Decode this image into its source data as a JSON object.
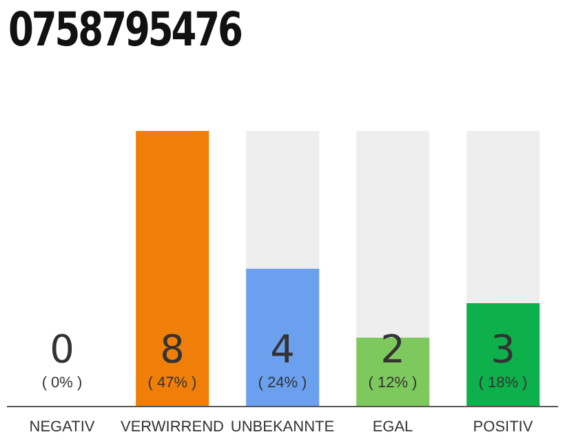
{
  "chart_data": {
    "type": "bar",
    "title": "0758795476",
    "categories": [
      "NEGATIV",
      "VERWIRREND",
      "UNBEKANNTE",
      "EGAL",
      "POSITIV"
    ],
    "values": [
      0,
      8,
      4,
      2,
      3
    ],
    "colors": [
      "#cccccc",
      "#f07f0a",
      "#6aa0ee",
      "#7dc95e",
      "#0db04b"
    ],
    "data_labels": true,
    "annotations": [
      "( 0% )",
      "( 47% )",
      "( 24% )",
      "( 12% )",
      "( 18% )"
    ],
    "grid": false,
    "legend": false
  }
}
